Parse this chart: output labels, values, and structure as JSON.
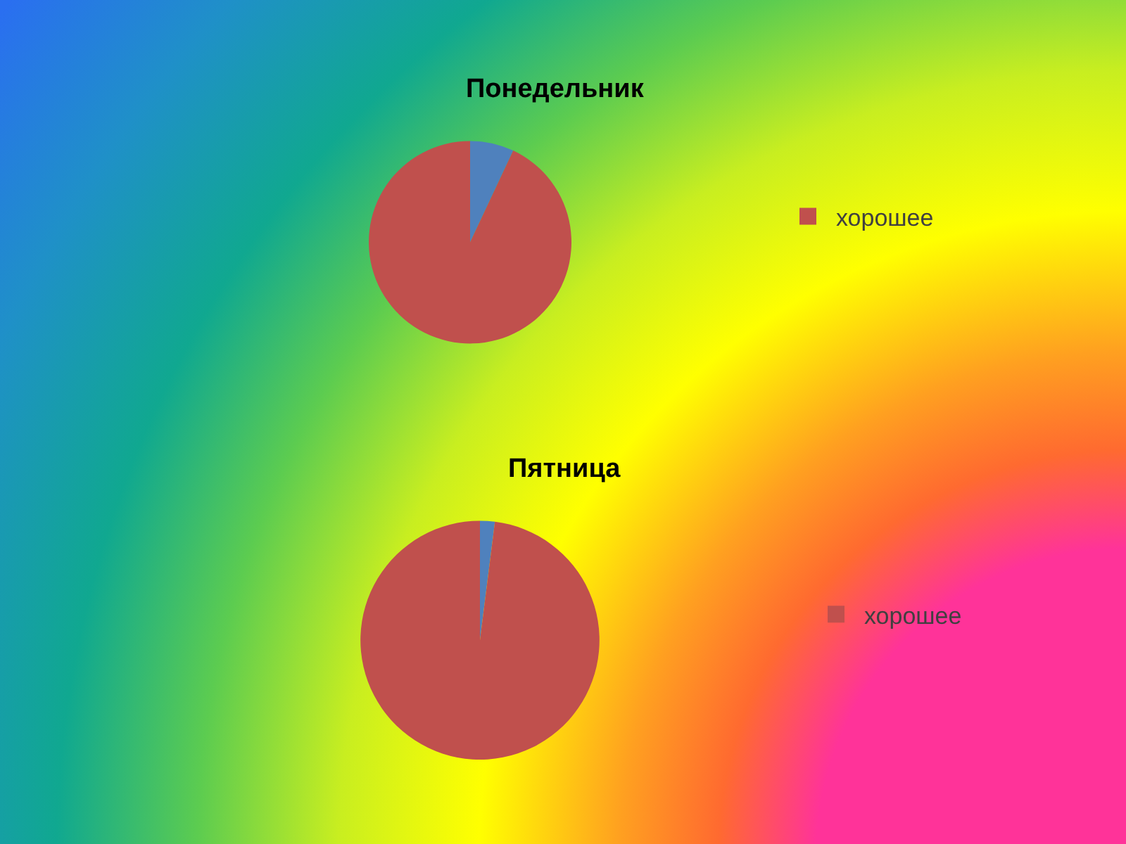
{
  "chart_data": [
    {
      "type": "pie",
      "title": "Понедельник",
      "categories": [
        null,
        "хорошее"
      ],
      "values": [
        7,
        93
      ],
      "colors": [
        "#4f81bd",
        "#c0504d"
      ],
      "legend": "right"
    },
    {
      "type": "pie",
      "title": "Пятница",
      "categories": [
        null,
        "хорошее"
      ],
      "values": [
        2,
        98
      ],
      "colors": [
        "#4f81bd",
        "#c0504d"
      ],
      "legend": "right"
    }
  ]
}
